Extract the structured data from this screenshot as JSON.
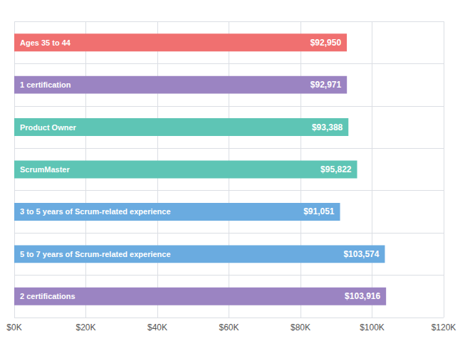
{
  "chart_data": {
    "type": "bar",
    "orientation": "horizontal",
    "categories": [
      "2 certifications",
      "5 to 7 years of Scrum-related experience",
      "3 to 5 years of Scrum-related experience",
      "ScrumMaster",
      "Product Owner",
      "1 certification",
      "Ages 35 to 44"
    ],
    "values": [
      103916,
      103574,
      91051,
      95822,
      93388,
      92971,
      92950
    ],
    "value_labels": [
      "$103,916",
      "$103,574",
      "$91,051",
      "$95,822",
      "$93,388",
      "$92,971",
      "$92,950"
    ],
    "colors": [
      "#9b84c2",
      "#6aabe0",
      "#6aabe0",
      "#5ec5b5",
      "#5ec5b5",
      "#9b84c2",
      "#f07070"
    ],
    "xlim": [
      0,
      120000
    ],
    "xticks": [
      {
        "value": 0,
        "label": "$0K"
      },
      {
        "value": 20000,
        "label": "$20K"
      },
      {
        "value": 40000,
        "label": "$40K"
      },
      {
        "value": 60000,
        "label": "$60K"
      },
      {
        "value": 80000,
        "label": "$80K"
      },
      {
        "value": 100000,
        "label": "$100K"
      },
      {
        "value": 120000,
        "label": "$120K"
      }
    ],
    "grid": true,
    "data_labels": true,
    "tick_labels": "x"
  }
}
